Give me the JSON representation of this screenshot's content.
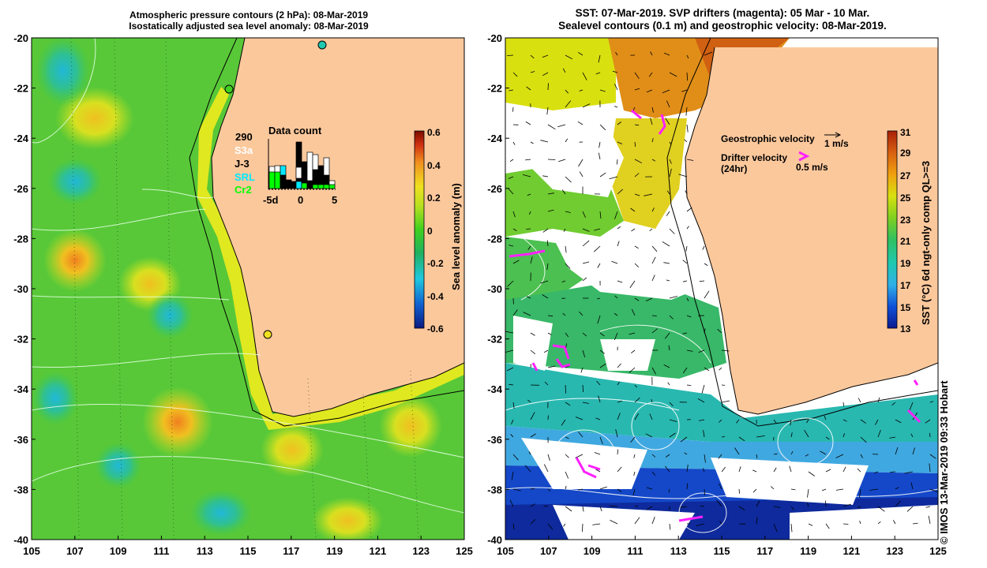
{
  "left_panel": {
    "title_line1": "Atmospheric pressure contours (2 hPa): 08-Mar-2019",
    "title_line2": "Isostatically adjusted sea level anomaly: 08-Mar-2019",
    "y_ticks": [
      "-20",
      "-22",
      "-24",
      "-26",
      "-28",
      "-30",
      "-32",
      "-34",
      "-36",
      "-38",
      "-40"
    ],
    "x_ticks": [
      "105",
      "107",
      "109",
      "111",
      "113",
      "115",
      "117",
      "119",
      "121",
      "123",
      "125"
    ],
    "colorbar_label": "Sea level anomaly (m)",
    "colorbar_ticks": [
      "0.6",
      "0.4",
      "0.2",
      "0",
      "-0.2",
      "-0.4",
      "-0.6"
    ],
    "inset": {
      "title": "Data count",
      "count": "290",
      "legend": [
        {
          "label": "S3a",
          "color": "#ffffff"
        },
        {
          "label": "J-3",
          "color": "#000000"
        },
        {
          "label": "SRL",
          "color": "#00e8ff"
        },
        {
          "label": "Cr2",
          "color": "#00ff00"
        }
      ],
      "x_labels": [
        "-5d",
        "0",
        "5"
      ]
    }
  },
  "right_panel": {
    "title_line1": "SST: 07-Mar-2019. SVP drifters (magenta): 05 Mar - 10 Mar.",
    "title_line2": "Sealevel contours (0.1 m) and geostrophic velocity: 08-Mar-2019.",
    "y_ticks": [
      "-20",
      "-22",
      "-24",
      "-26",
      "-28",
      "-30",
      "-32",
      "-34",
      "-36",
      "-38",
      "-40"
    ],
    "x_ticks": [
      "105",
      "107",
      "109",
      "111",
      "113",
      "115",
      "117",
      "119",
      "121",
      "123",
      "125"
    ],
    "legend_geo": "Geostrophic velocity",
    "legend_geo_scale": "1 m/s",
    "legend_drifter_line1": "Drifter velocity",
    "legend_drifter_line2": "(24hr)",
    "legend_drifter_scale": "0.5 m/s",
    "colorbar_label": "SST (°C) 6d ngt-only comp QL>=3",
    "colorbar_ticks": [
      "31",
      "29",
      "27",
      "25",
      "23",
      "21",
      "19",
      "17",
      "15",
      "13"
    ]
  },
  "credit": "© IMOS 13-Mar-2019 09:33 Hobart",
  "colors": {
    "land": "#fbc89c",
    "sla_ramp": [
      "#0a1a80",
      "#1060d0",
      "#20c8e0",
      "#20b060",
      "#40d020",
      "#b8e020",
      "#f0e020",
      "#f09020",
      "#d03010",
      "#7a0a00"
    ],
    "sst_ramp": [
      "#0c1a90",
      "#1050d8",
      "#30b0e8",
      "#20c8b0",
      "#30c060",
      "#80d020",
      "#d8e010",
      "#f0a010",
      "#d86010",
      "#a82008"
    ],
    "drifter": "#ff20ff"
  }
}
